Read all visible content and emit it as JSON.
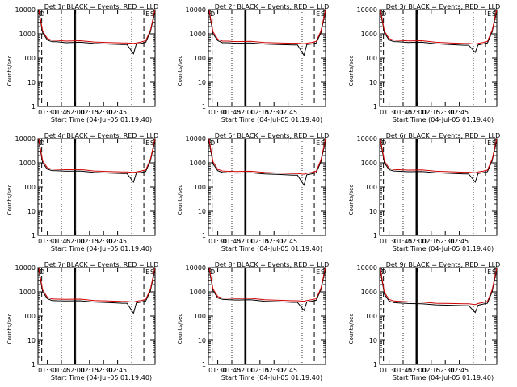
{
  "chart_data": [
    {
      "type": "line",
      "title": "Det 1r BLACK = Events, RED = LLD",
      "xlabel": "Start Time (04-Jul-05 01:19:40)",
      "ylabel": "Counts/sec",
      "yscale": "log",
      "ylim": [
        1,
        10000
      ],
      "ytick_labels": [
        "1",
        "10",
        "100",
        "1000",
        "10000"
      ],
      "xtick_labels": [
        "01:30",
        "01:45",
        "02:00",
        "02:15",
        "02:30",
        "02:45"
      ],
      "markers": [
        "D",
        "E",
        "S"
      ],
      "series": [
        {
          "name": "Events",
          "color": "#000000",
          "x_min": [
            0,
            5,
            10,
            15,
            20,
            30,
            45,
            60,
            75,
            90,
            95,
            102,
            105,
            110,
            115,
            120,
            125
          ],
          "y": [
            13000,
            1100,
            560,
            470,
            470,
            430,
            450,
            400,
            380,
            360,
            360,
            150,
            380,
            400,
            450,
            1200,
            9000
          ]
        },
        {
          "name": "LLD",
          "color": "#d00000",
          "x_min": [
            0,
            5,
            10,
            15,
            20,
            30,
            45,
            60,
            75,
            90,
            95,
            102,
            105,
            110,
            115,
            120,
            125
          ],
          "y": [
            15000,
            1300,
            640,
            540,
            540,
            500,
            520,
            460,
            440,
            420,
            420,
            400,
            420,
            460,
            520,
            1400,
            10500
          ]
        }
      ]
    },
    {
      "type": "line",
      "title": "Det 2r BLACK = Events, RED = LLD",
      "xlabel": "Start Time (04-Jul-05 01:19:40)",
      "ylabel": "Counts/sec",
      "yscale": "log",
      "ylim": [
        1,
        10000
      ],
      "ytick_labels": [
        "1",
        "10",
        "100",
        "1000",
        "10000"
      ],
      "xtick_labels": [
        "01:30",
        "01:45",
        "02:00",
        "02:15",
        "02:30",
        "02:45"
      ],
      "markers": [
        "D",
        "E",
        "S"
      ],
      "series": [
        {
          "name": "Events",
          "color": "#000000",
          "x_min": [
            0,
            5,
            10,
            15,
            20,
            30,
            45,
            60,
            75,
            90,
            95,
            102,
            105,
            110,
            115,
            120,
            125
          ],
          "y": [
            12000,
            1000,
            520,
            430,
            430,
            410,
            420,
            380,
            360,
            350,
            350,
            130,
            360,
            380,
            420,
            1100,
            8500
          ]
        },
        {
          "name": "LLD",
          "color": "#d00000",
          "x_min": [
            0,
            5,
            10,
            15,
            20,
            30,
            45,
            60,
            75,
            90,
            95,
            102,
            105,
            110,
            115,
            120,
            125
          ],
          "y": [
            14000,
            1200,
            600,
            500,
            500,
            480,
            490,
            440,
            420,
            410,
            410,
            390,
            410,
            440,
            490,
            1300,
            10000
          ]
        }
      ]
    },
    {
      "type": "line",
      "title": "Det 3r BLACK = Events, RED = LLD",
      "xlabel": "Start Time (04-Jul-05 01:19:40)",
      "ylabel": "Counts/sec",
      "yscale": "log",
      "ylim": [
        1,
        10000
      ],
      "ytick_labels": [
        "1",
        "10",
        "100",
        "1000",
        "10000"
      ],
      "xtick_labels": [
        "01:30",
        "01:45",
        "02:00",
        "02:15",
        "02:30",
        "02:45"
      ],
      "markers": [
        "D",
        "E",
        "S"
      ],
      "series": [
        {
          "name": "Events",
          "color": "#000000",
          "x_min": [
            0,
            5,
            10,
            15,
            20,
            30,
            45,
            60,
            75,
            90,
            95,
            102,
            105,
            110,
            115,
            120,
            125
          ],
          "y": [
            13000,
            1100,
            560,
            480,
            470,
            440,
            450,
            390,
            360,
            340,
            340,
            170,
            350,
            380,
            420,
            1200,
            9000
          ]
        },
        {
          "name": "LLD",
          "color": "#d00000",
          "x_min": [
            0,
            5,
            10,
            15,
            20,
            30,
            45,
            60,
            75,
            90,
            95,
            102,
            105,
            110,
            115,
            120,
            125
          ],
          "y": [
            15000,
            1300,
            640,
            550,
            540,
            510,
            520,
            450,
            420,
            400,
            400,
            380,
            400,
            440,
            490,
            1400,
            10500
          ]
        }
      ]
    },
    {
      "type": "line",
      "title": "Det 4r BLACK = Events, RED = LLD",
      "xlabel": "Start Time (04-Jul-05 01:19:40)",
      "ylabel": "Counts/sec",
      "yscale": "log",
      "ylim": [
        1,
        10000
      ],
      "ytick_labels": [
        "1",
        "10",
        "100",
        "1000",
        "10000"
      ],
      "xtick_labels": [
        "01:30",
        "01:45",
        "02:00",
        "02:15",
        "02:30",
        "02:45"
      ],
      "markers": [
        "D",
        "E",
        "S"
      ],
      "series": [
        {
          "name": "Events",
          "color": "#000000",
          "x_min": [
            0,
            5,
            10,
            15,
            20,
            30,
            45,
            60,
            75,
            90,
            95,
            102,
            105,
            110,
            115,
            120,
            125
          ],
          "y": [
            12000,
            1000,
            540,
            480,
            470,
            450,
            460,
            400,
            380,
            360,
            360,
            160,
            380,
            400,
            440,
            1200,
            9000
          ]
        },
        {
          "name": "LLD",
          "color": "#d00000",
          "x_min": [
            0,
            5,
            10,
            15,
            20,
            30,
            45,
            60,
            75,
            90,
            95,
            102,
            105,
            110,
            115,
            120,
            125
          ],
          "y": [
            14000,
            1200,
            620,
            550,
            540,
            520,
            530,
            460,
            440,
            420,
            420,
            400,
            420,
            460,
            510,
            1400,
            10500
          ]
        }
      ]
    },
    {
      "type": "line",
      "title": "Det 5r BLACK = Events, RED = LLD",
      "xlabel": "Start Time (04-Jul-05 01:19:40)",
      "ylabel": "Counts/sec",
      "yscale": "log",
      "ylim": [
        1,
        10000
      ],
      "ytick_labels": [
        "1",
        "10",
        "100",
        "1000",
        "10000"
      ],
      "xtick_labels": [
        "01:30",
        "01:45",
        "02:00",
        "02:15",
        "02:30",
        "02:45"
      ],
      "markers": [
        "D",
        "E",
        "S"
      ],
      "series": [
        {
          "name": "Events",
          "color": "#000000",
          "x_min": [
            0,
            5,
            10,
            15,
            20,
            30,
            45,
            60,
            75,
            90,
            95,
            102,
            105,
            110,
            115,
            120,
            125
          ],
          "y": [
            11000,
            900,
            470,
            400,
            390,
            380,
            390,
            350,
            330,
            310,
            310,
            120,
            320,
            350,
            390,
            1100,
            8500
          ]
        },
        {
          "name": "LLD",
          "color": "#d00000",
          "x_min": [
            0,
            5,
            10,
            15,
            20,
            30,
            45,
            60,
            75,
            90,
            95,
            102,
            105,
            110,
            115,
            120,
            125
          ],
          "y": [
            13000,
            1100,
            540,
            460,
            450,
            440,
            450,
            400,
            380,
            360,
            360,
            340,
            370,
            400,
            450,
            1300,
            10000
          ]
        }
      ]
    },
    {
      "type": "line",
      "title": "Det 6r BLACK = Events, RED = LLD",
      "xlabel": "Start Time (04-Jul-05 01:19:40)",
      "ylabel": "Counts/sec",
      "yscale": "log",
      "ylim": [
        1,
        10000
      ],
      "ytick_labels": [
        "1",
        "10",
        "100",
        "1000",
        "10000"
      ],
      "xtick_labels": [
        "01:30",
        "01:45",
        "02:00",
        "02:15",
        "02:30",
        "02:45"
      ],
      "markers": [
        "D",
        "E",
        "S"
      ],
      "series": [
        {
          "name": "Events",
          "color": "#000000",
          "x_min": [
            0,
            5,
            10,
            15,
            20,
            30,
            45,
            60,
            75,
            90,
            95,
            102,
            105,
            110,
            115,
            120,
            125
          ],
          "y": [
            12000,
            1000,
            520,
            460,
            450,
            430,
            440,
            390,
            370,
            350,
            350,
            160,
            360,
            390,
            430,
            1200,
            9000
          ]
        },
        {
          "name": "LLD",
          "color": "#d00000",
          "x_min": [
            0,
            5,
            10,
            15,
            20,
            30,
            45,
            60,
            75,
            90,
            95,
            102,
            105,
            110,
            115,
            120,
            125
          ],
          "y": [
            14000,
            1200,
            600,
            530,
            520,
            500,
            510,
            450,
            430,
            410,
            410,
            390,
            420,
            450,
            500,
            1400,
            10500
          ]
        }
      ]
    },
    {
      "type": "line",
      "title": "Det 7r BLACK = Events, RED = LLD",
      "xlabel": "Start Time (04-Jul-05 01:19:40)",
      "ylabel": "Counts/sec",
      "yscale": "log",
      "ylim": [
        1,
        10000
      ],
      "ytick_labels": [
        "1",
        "10",
        "100",
        "1000",
        "10000"
      ],
      "xtick_labels": [
        "01:30",
        "01:45",
        "02:00",
        "02:15",
        "02:30",
        "02:45"
      ],
      "markers": [
        "D",
        "E",
        "S"
      ],
      "series": [
        {
          "name": "Events",
          "color": "#000000",
          "x_min": [
            0,
            5,
            10,
            15,
            20,
            30,
            45,
            60,
            75,
            90,
            95,
            102,
            105,
            110,
            115,
            120,
            125
          ],
          "y": [
            12000,
            1000,
            520,
            440,
            430,
            420,
            430,
            380,
            360,
            340,
            340,
            130,
            350,
            380,
            420,
            1100,
            9000
          ]
        },
        {
          "name": "LLD",
          "color": "#d00000",
          "x_min": [
            0,
            5,
            10,
            15,
            20,
            30,
            45,
            60,
            75,
            90,
            95,
            102,
            105,
            110,
            115,
            120,
            125
          ],
          "y": [
            14000,
            1200,
            600,
            510,
            500,
            490,
            500,
            440,
            420,
            400,
            400,
            380,
            410,
            440,
            490,
            1300,
            10500
          ]
        }
      ]
    },
    {
      "type": "line",
      "title": "Det 8r BLACK = Events, RED = LLD",
      "xlabel": "Start Time (04-Jul-05 01:19:40)",
      "ylabel": "Counts/sec",
      "yscale": "log",
      "ylim": [
        1,
        10000
      ],
      "ytick_labels": [
        "1",
        "10",
        "100",
        "1000",
        "10000"
      ],
      "xtick_labels": [
        "01:30",
        "01:45",
        "02:00",
        "02:15",
        "02:30",
        "02:45"
      ],
      "markers": [
        "D",
        "E",
        "S"
      ],
      "series": [
        {
          "name": "Events",
          "color": "#000000",
          "x_min": [
            0,
            5,
            10,
            15,
            20,
            30,
            45,
            60,
            75,
            90,
            95,
            102,
            105,
            110,
            115,
            120,
            125
          ],
          "y": [
            13000,
            1100,
            560,
            490,
            480,
            460,
            470,
            410,
            390,
            370,
            370,
            170,
            380,
            410,
            450,
            1200,
            9500
          ]
        },
        {
          "name": "LLD",
          "color": "#d00000",
          "x_min": [
            0,
            5,
            10,
            15,
            20,
            30,
            45,
            60,
            75,
            90,
            95,
            102,
            105,
            110,
            115,
            120,
            125
          ],
          "y": [
            15000,
            1300,
            640,
            560,
            550,
            530,
            540,
            470,
            450,
            430,
            430,
            410,
            440,
            470,
            520,
            1400,
            11000
          ]
        }
      ]
    },
    {
      "type": "line",
      "title": "Det 9r BLACK = Events, RED = LLD",
      "xlabel": "Start Time (04-Jul-05 01:19:40)",
      "ylabel": "Counts/sec",
      "yscale": "log",
      "ylim": [
        1,
        10000
      ],
      "ytick_labels": [
        "1",
        "10",
        "100",
        "1000",
        "10000"
      ],
      "xtick_labels": [
        "01:30",
        "01:45",
        "02:00",
        "02:15",
        "02:30",
        "02:45"
      ],
      "markers": [
        "D",
        "E",
        "S"
      ],
      "series": [
        {
          "name": "Events",
          "color": "#000000",
          "x_min": [
            0,
            5,
            10,
            15,
            20,
            30,
            45,
            60,
            75,
            90,
            95,
            102,
            105,
            110,
            115,
            120,
            125
          ],
          "y": [
            11000,
            800,
            420,
            360,
            350,
            330,
            320,
            290,
            280,
            270,
            270,
            140,
            280,
            310,
            340,
            1000,
            8500
          ]
        },
        {
          "name": "LLD",
          "color": "#d00000",
          "x_min": [
            0,
            5,
            10,
            15,
            20,
            30,
            45,
            60,
            75,
            90,
            95,
            102,
            105,
            110,
            115,
            120,
            125
          ],
          "y": [
            13000,
            950,
            490,
            420,
            410,
            390,
            380,
            340,
            330,
            320,
            320,
            300,
            330,
            360,
            400,
            1200,
            10000
          ]
        }
      ]
    }
  ]
}
